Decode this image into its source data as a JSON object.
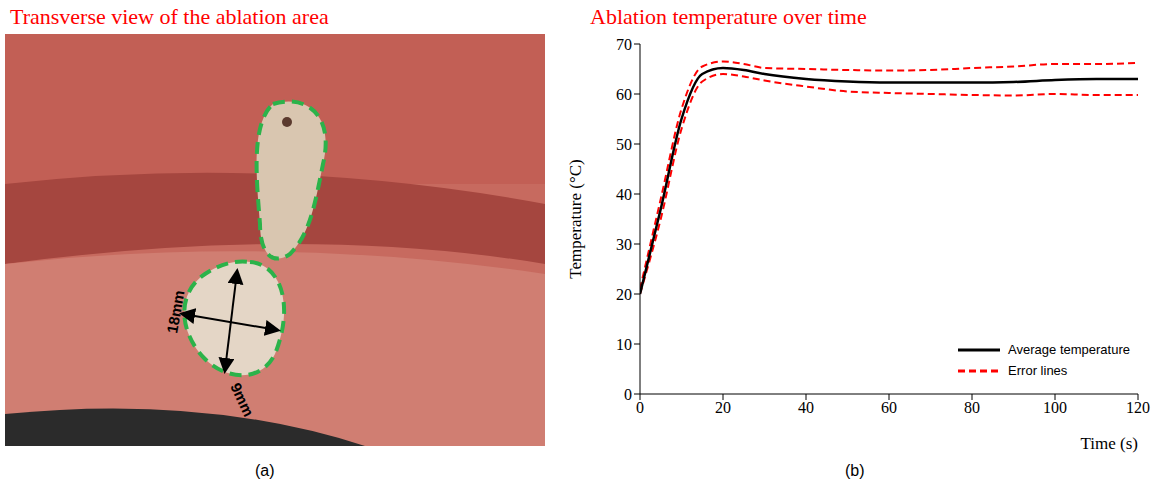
{
  "image_panel": {
    "title": "Transverse view of the ablation area",
    "panel_label": "(a)",
    "annotations": [
      "18mm",
      "9mm"
    ]
  },
  "chart_data": {
    "type": "line",
    "title": "Ablation temperature over time",
    "panel_label": "(b)",
    "x_label": "Time (s)",
    "y_label": "Temperature (°C)",
    "x": [
      0,
      5,
      10,
      15,
      20,
      25,
      30,
      40,
      50,
      60,
      70,
      80,
      90,
      100,
      110,
      120
    ],
    "series": [
      {
        "name": "Average temperature",
        "color": "#000000",
        "line_style": "solid",
        "values": [
          20,
          37,
          55,
          64,
          65.2,
          64.8,
          64,
          63,
          62.5,
          62.3,
          62.3,
          62.3,
          62.4,
          62.8,
          63,
          63
        ]
      },
      {
        "name": "Error lines",
        "color": "#ff0000",
        "line_style": "dashed",
        "upper": [
          21,
          39,
          57,
          65.5,
          66.5,
          66,
          65.2,
          65,
          64.8,
          64.7,
          64.8,
          65.2,
          65.5,
          66,
          66,
          66.2
        ],
        "lower": [
          20,
          35,
          53,
          62.5,
          64,
          63.5,
          62.7,
          61.5,
          60.5,
          60.2,
          60,
          59.8,
          59.7,
          60,
          59.8,
          59.8
        ]
      }
    ],
    "xlim": [
      0,
      120
    ],
    "ylim": [
      0,
      70
    ],
    "xticks": [
      0,
      20,
      40,
      60,
      80,
      100,
      120
    ],
    "yticks": [
      0,
      10,
      20,
      30,
      40,
      50,
      60,
      70
    ],
    "grid": false,
    "legend": "lower right"
  }
}
